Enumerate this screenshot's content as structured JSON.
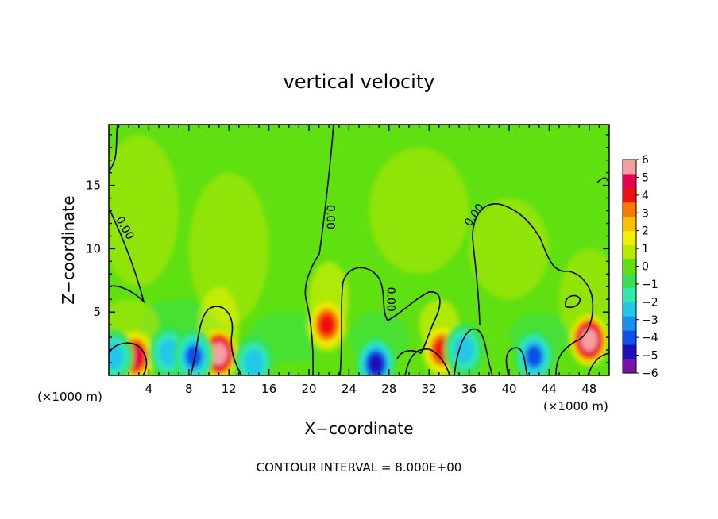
{
  "chart_data": {
    "type": "heatmap",
    "title": "vertical velocity",
    "xlabel": "X−coordinate",
    "ylabel": "Z−coordinate",
    "x_unit_left": "(×1000 m)",
    "x_unit_right": "(×1000 m)",
    "footer": "CONTOUR INTERVAL = 8.000E+00",
    "xlim": [
      0,
      50
    ],
    "ylim": [
      0,
      19.8
    ],
    "x_ticks": [
      4,
      8,
      12,
      16,
      20,
      24,
      28,
      32,
      36,
      40,
      44,
      48
    ],
    "x_tick_labels": [
      "4",
      "8",
      "12",
      "16",
      "20",
      "24",
      "28",
      "32",
      "36",
      "40",
      "44",
      "48"
    ],
    "y_ticks": [
      5,
      10,
      15
    ],
    "y_tick_labels": [
      "5",
      "10",
      "15"
    ],
    "colorbar": {
      "min": -6,
      "max": 6,
      "ticks": [
        6,
        5,
        4,
        3,
        2,
        1,
        0,
        -1,
        -2,
        -3,
        -4,
        -5,
        -6
      ],
      "tick_labels": [
        "6",
        "5",
        "4",
        "3",
        "2",
        "1",
        "0",
        "−1",
        "−2",
        "−3",
        "−4",
        "−5",
        "−6"
      ],
      "colors": [
        "#7a10a8",
        "#1a10b8",
        "#1050e8",
        "#1890f0",
        "#20c8e8",
        "#30e8b0",
        "#36e050",
        "#60e010",
        "#b8e800",
        "#f0f000",
        "#f8c000",
        "#f87800",
        "#f01010",
        "#e80050",
        "#f4a0a0"
      ]
    },
    "contour_label": "0.00",
    "contour_labels": [
      {
        "x": 1.3,
        "z": 11.5,
        "text": "0.00"
      },
      {
        "x": 21.8,
        "z": 12.5,
        "text": "0.00"
      },
      {
        "x": 27.8,
        "z": 6.0,
        "text": "0.00"
      },
      {
        "x": 36.8,
        "z": 12.5,
        "text": "0.00"
      }
    ],
    "features": [
      {
        "x": 2.6,
        "z": 1.5,
        "value": 3.5
      },
      {
        "x": 11.0,
        "z": 1.7,
        "value": 5.5
      },
      {
        "x": 21.8,
        "z": 4.0,
        "value": 3.0
      },
      {
        "x": 33.3,
        "z": 2.0,
        "value": 3.0
      },
      {
        "x": 48.0,
        "z": 2.8,
        "value": 5.5
      },
      {
        "x": 6.0,
        "z": 1.8,
        "value": -2.0
      },
      {
        "x": 8.5,
        "z": 1.5,
        "value": -2.5
      },
      {
        "x": 14.5,
        "z": 1.0,
        "value": -1.5
      },
      {
        "x": 26.7,
        "z": 0.9,
        "value": -3.5
      },
      {
        "x": 35.5,
        "z": 2.0,
        "value": -2.0
      },
      {
        "x": 42.5,
        "z": 1.5,
        "value": -3.0
      },
      {
        "x": 0.5,
        "z": 1.5,
        "value": -2.0
      }
    ]
  }
}
